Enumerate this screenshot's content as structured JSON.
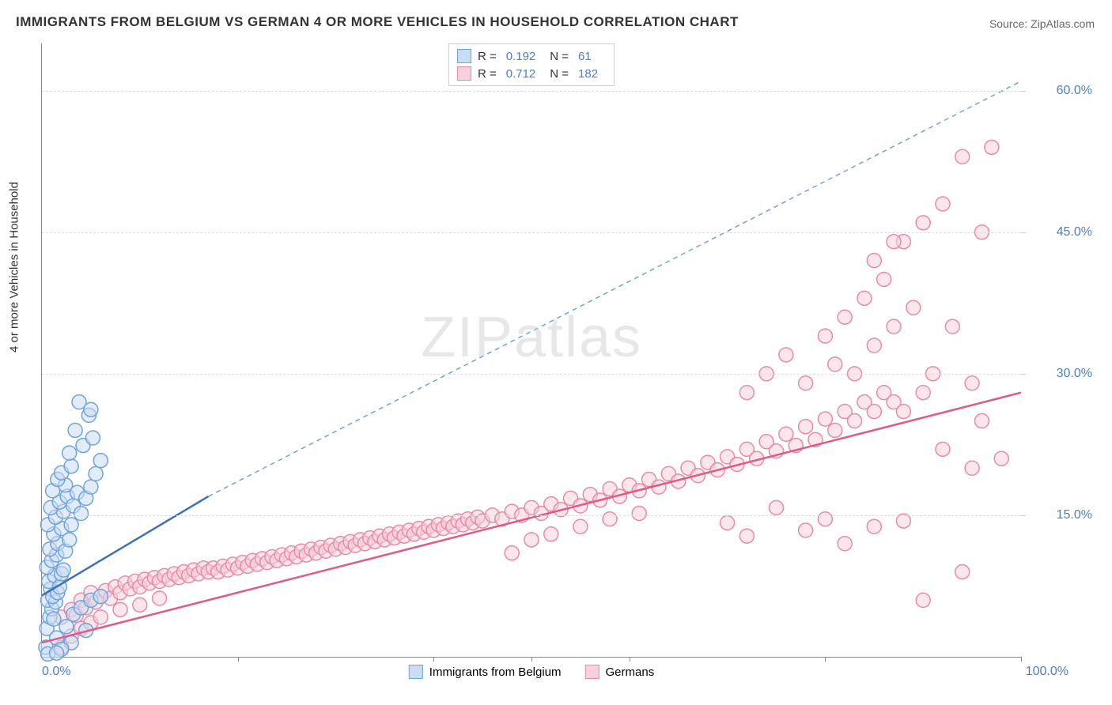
{
  "title": "IMMIGRANTS FROM BELGIUM VS GERMAN 4 OR MORE VEHICLES IN HOUSEHOLD CORRELATION CHART",
  "source": "Source: ZipAtlas.com",
  "ylabel": "4 or more Vehicles in Household",
  "watermark": "ZIPatlas",
  "chart": {
    "type": "scatter",
    "xrange": [
      0,
      100
    ],
    "yrange": [
      0,
      65
    ],
    "yticks": [
      {
        "val": 15,
        "label": "15.0%"
      },
      {
        "val": 30,
        "label": "30.0%"
      },
      {
        "val": 45,
        "label": "45.0%"
      },
      {
        "val": 60,
        "label": "60.0%"
      }
    ],
    "xtick0": "0.0%",
    "xtick100": "100.0%",
    "xtick_marks": [
      20,
      40,
      50,
      60,
      80,
      100
    ],
    "grid_color": "#dddddd",
    "axis_color": "#888888",
    "background": "#ffffff",
    "marker_radius": 9,
    "marker_stroke_width": 1.5,
    "series": [
      {
        "name": "Immigrants from Belgium",
        "fill": "#c9ddf3",
        "stroke": "#6fa3db",
        "fill_opacity": 0.55,
        "R": "0.192",
        "N": "61",
        "trend": {
          "x1": 0,
          "y1": 6.5,
          "x2": 17,
          "y2": 17,
          "color": "#3e6fb8",
          "width": 2.5,
          "dash": "none"
        },
        "trend_ext": {
          "x1": 17,
          "y1": 17,
          "x2": 100,
          "y2": 61,
          "color": "#6fa3db",
          "width": 1.5,
          "dash": "6,5"
        },
        "points": [
          [
            0.5,
            3.0
          ],
          [
            0.8,
            4.2
          ],
          [
            1.0,
            5.1
          ],
          [
            1.2,
            4.0
          ],
          [
            0.6,
            6.0
          ],
          [
            1.4,
            5.8
          ],
          [
            0.9,
            7.2
          ],
          [
            1.1,
            6.4
          ],
          [
            1.6,
            6.8
          ],
          [
            0.7,
            8.0
          ],
          [
            1.3,
            8.6
          ],
          [
            1.8,
            7.4
          ],
          [
            2.0,
            8.8
          ],
          [
            0.5,
            9.5
          ],
          [
            1.0,
            10.2
          ],
          [
            1.5,
            10.8
          ],
          [
            2.2,
            9.2
          ],
          [
            0.8,
            11.4
          ],
          [
            1.6,
            12.0
          ],
          [
            2.4,
            11.2
          ],
          [
            1.2,
            13.0
          ],
          [
            2.0,
            13.6
          ],
          [
            0.6,
            14.0
          ],
          [
            2.8,
            12.4
          ],
          [
            1.4,
            14.8
          ],
          [
            2.2,
            15.4
          ],
          [
            0.9,
            15.8
          ],
          [
            3.0,
            14.0
          ],
          [
            1.8,
            16.4
          ],
          [
            2.6,
            17.0
          ],
          [
            1.1,
            17.6
          ],
          [
            3.2,
            16.0
          ],
          [
            4.0,
            15.2
          ],
          [
            2.4,
            18.2
          ],
          [
            1.6,
            18.8
          ],
          [
            3.6,
            17.4
          ],
          [
            4.5,
            16.8
          ],
          [
            2.0,
            19.5
          ],
          [
            5.0,
            18.0
          ],
          [
            3.0,
            20.2
          ],
          [
            5.5,
            19.4
          ],
          [
            6.0,
            20.8
          ],
          [
            2.8,
            21.6
          ],
          [
            4.2,
            22.4
          ],
          [
            3.4,
            24.0
          ],
          [
            5.2,
            23.2
          ],
          [
            4.8,
            25.6
          ],
          [
            3.8,
            27.0
          ],
          [
            5.0,
            26.2
          ],
          [
            1.5,
            2.0
          ],
          [
            2.5,
            3.2
          ],
          [
            3.2,
            4.5
          ],
          [
            4.0,
            5.2
          ],
          [
            5.0,
            6.0
          ],
          [
            6.0,
            6.4
          ],
          [
            3.0,
            1.5
          ],
          [
            4.5,
            2.8
          ],
          [
            2.0,
            0.8
          ],
          [
            0.4,
            1.0
          ],
          [
            0.6,
            0.3
          ],
          [
            1.5,
            0.4
          ]
        ]
      },
      {
        "name": "Germans",
        "fill": "#f7d2dc",
        "stroke": "#e88aa6",
        "fill_opacity": 0.55,
        "R": "0.712",
        "N": "182",
        "trend": {
          "x1": 0,
          "y1": 1.5,
          "x2": 100,
          "y2": 28,
          "color": "#e05a85",
          "width": 2.5,
          "dash": "none"
        },
        "points": [
          [
            2.0,
            4.2
          ],
          [
            3.0,
            5.0
          ],
          [
            3.5,
            4.4
          ],
          [
            4.0,
            6.0
          ],
          [
            4.5,
            5.2
          ],
          [
            5.0,
            6.8
          ],
          [
            5.5,
            5.8
          ],
          [
            6.0,
            6.4
          ],
          [
            6.5,
            7.0
          ],
          [
            7.0,
            6.2
          ],
          [
            7.5,
            7.4
          ],
          [
            8.0,
            6.8
          ],
          [
            8.5,
            7.8
          ],
          [
            9.0,
            7.2
          ],
          [
            9.5,
            8.0
          ],
          [
            10.0,
            7.4
          ],
          [
            10.5,
            8.2
          ],
          [
            11.0,
            7.8
          ],
          [
            11.5,
            8.4
          ],
          [
            12.0,
            8.0
          ],
          [
            12.5,
            8.6
          ],
          [
            13.0,
            8.2
          ],
          [
            13.5,
            8.8
          ],
          [
            14.0,
            8.4
          ],
          [
            14.5,
            9.0
          ],
          [
            15.0,
            8.6
          ],
          [
            15.5,
            9.2
          ],
          [
            16.0,
            8.8
          ],
          [
            16.5,
            9.4
          ],
          [
            17.0,
            9.0
          ],
          [
            17.5,
            9.4
          ],
          [
            18.0,
            9.0
          ],
          [
            18.5,
            9.6
          ],
          [
            19.0,
            9.2
          ],
          [
            19.5,
            9.8
          ],
          [
            20.0,
            9.4
          ],
          [
            20.5,
            10.0
          ],
          [
            21.0,
            9.6
          ],
          [
            21.5,
            10.2
          ],
          [
            22.0,
            9.8
          ],
          [
            22.5,
            10.4
          ],
          [
            23.0,
            10.0
          ],
          [
            23.5,
            10.6
          ],
          [
            24.0,
            10.2
          ],
          [
            24.5,
            10.8
          ],
          [
            25.0,
            10.4
          ],
          [
            25.5,
            11.0
          ],
          [
            26.0,
            10.6
          ],
          [
            26.5,
            11.2
          ],
          [
            27.0,
            10.8
          ],
          [
            27.5,
            11.4
          ],
          [
            28.0,
            11.0
          ],
          [
            28.5,
            11.6
          ],
          [
            29.0,
            11.2
          ],
          [
            29.5,
            11.8
          ],
          [
            30.0,
            11.4
          ],
          [
            30.5,
            12.0
          ],
          [
            31.0,
            11.6
          ],
          [
            31.5,
            12.2
          ],
          [
            32.0,
            11.8
          ],
          [
            32.5,
            12.4
          ],
          [
            33.0,
            12.0
          ],
          [
            33.5,
            12.6
          ],
          [
            34.0,
            12.2
          ],
          [
            34.5,
            12.8
          ],
          [
            35.0,
            12.4
          ],
          [
            35.5,
            13.0
          ],
          [
            36.0,
            12.6
          ],
          [
            36.5,
            13.2
          ],
          [
            37.0,
            12.8
          ],
          [
            37.5,
            13.4
          ],
          [
            38.0,
            13.0
          ],
          [
            38.5,
            13.6
          ],
          [
            39.0,
            13.2
          ],
          [
            39.5,
            13.8
          ],
          [
            40.0,
            13.4
          ],
          [
            40.5,
            14.0
          ],
          [
            41.0,
            13.6
          ],
          [
            41.5,
            14.2
          ],
          [
            42.0,
            13.8
          ],
          [
            42.5,
            14.4
          ],
          [
            43.0,
            14.0
          ],
          [
            43.5,
            14.6
          ],
          [
            44.0,
            14.2
          ],
          [
            44.5,
            14.8
          ],
          [
            45.0,
            14.4
          ],
          [
            46.0,
            15.0
          ],
          [
            47.0,
            14.6
          ],
          [
            48.0,
            15.4
          ],
          [
            49.0,
            15.0
          ],
          [
            50.0,
            15.8
          ],
          [
            51.0,
            15.2
          ],
          [
            52.0,
            16.2
          ],
          [
            53.0,
            15.6
          ],
          [
            54.0,
            16.8
          ],
          [
            55.0,
            16.0
          ],
          [
            56.0,
            17.2
          ],
          [
            57.0,
            16.6
          ],
          [
            58.0,
            17.8
          ],
          [
            59.0,
            17.0
          ],
          [
            60.0,
            18.2
          ],
          [
            61.0,
            17.6
          ],
          [
            62.0,
            18.8
          ],
          [
            63.0,
            18.0
          ],
          [
            64.0,
            19.4
          ],
          [
            65.0,
            18.6
          ],
          [
            66.0,
            20.0
          ],
          [
            67.0,
            19.2
          ],
          [
            68.0,
            20.6
          ],
          [
            69.0,
            19.8
          ],
          [
            70.0,
            21.2
          ],
          [
            71.0,
            20.4
          ],
          [
            72.0,
            22.0
          ],
          [
            73.0,
            21.0
          ],
          [
            74.0,
            22.8
          ],
          [
            75.0,
            21.8
          ],
          [
            76.0,
            23.6
          ],
          [
            77.0,
            22.4
          ],
          [
            78.0,
            24.4
          ],
          [
            79.0,
            23.0
          ],
          [
            80.0,
            25.2
          ],
          [
            81.0,
            24.0
          ],
          [
            82.0,
            26.0
          ],
          [
            83.0,
            25.0
          ],
          [
            84.0,
            27.0
          ],
          [
            85.0,
            26.0
          ],
          [
            86.0,
            28.0
          ],
          [
            87.0,
            27.0
          ],
          [
            70.0,
            14.2
          ],
          [
            72.0,
            12.8
          ],
          [
            75.0,
            15.8
          ],
          [
            78.0,
            13.4
          ],
          [
            80.0,
            14.6
          ],
          [
            82.0,
            12.0
          ],
          [
            85.0,
            13.8
          ],
          [
            88.0,
            14.4
          ],
          [
            72.0,
            28.0
          ],
          [
            74.0,
            30.0
          ],
          [
            76.0,
            32.0
          ],
          [
            78.0,
            29.0
          ],
          [
            80.0,
            34.0
          ],
          [
            81.0,
            31.0
          ],
          [
            82.0,
            36.0
          ],
          [
            83.0,
            30.0
          ],
          [
            84.0,
            38.0
          ],
          [
            85.0,
            33.0
          ],
          [
            86.0,
            40.0
          ],
          [
            87.0,
            35.0
          ],
          [
            88.0,
            44.0
          ],
          [
            89.0,
            37.0
          ],
          [
            90.0,
            46.0
          ],
          [
            91.0,
            30.0
          ],
          [
            92.0,
            48.0
          ],
          [
            93.0,
            35.0
          ],
          [
            94.0,
            53.0
          ],
          [
            95.0,
            29.0
          ],
          [
            96.0,
            45.0
          ],
          [
            97.0,
            54.0
          ],
          [
            95.0,
            20.0
          ],
          [
            92.0,
            22.0
          ],
          [
            98.0,
            21.0
          ],
          [
            96.0,
            25.0
          ],
          [
            90.0,
            6.0
          ],
          [
            94.0,
            9.0
          ],
          [
            85.0,
            42.0
          ],
          [
            88.0,
            26.0
          ],
          [
            90.0,
            28.0
          ],
          [
            87.0,
            44.0
          ],
          [
            2.0,
            1.0
          ],
          [
            3.0,
            2.2
          ],
          [
            4.0,
            3.0
          ],
          [
            5.0,
            3.6
          ],
          [
            6.0,
            4.2
          ],
          [
            8.0,
            5.0
          ],
          [
            10.0,
            5.5
          ],
          [
            12.0,
            6.2
          ],
          [
            48.0,
            11.0
          ],
          [
            50.0,
            12.4
          ],
          [
            52.0,
            13.0
          ],
          [
            55.0,
            13.8
          ],
          [
            58.0,
            14.6
          ],
          [
            61.0,
            15.2
          ]
        ]
      }
    ]
  },
  "title_fontsize": 17,
  "label_fontsize": 15,
  "tick_fontsize": 16,
  "tick_color": "#4a7fc4"
}
